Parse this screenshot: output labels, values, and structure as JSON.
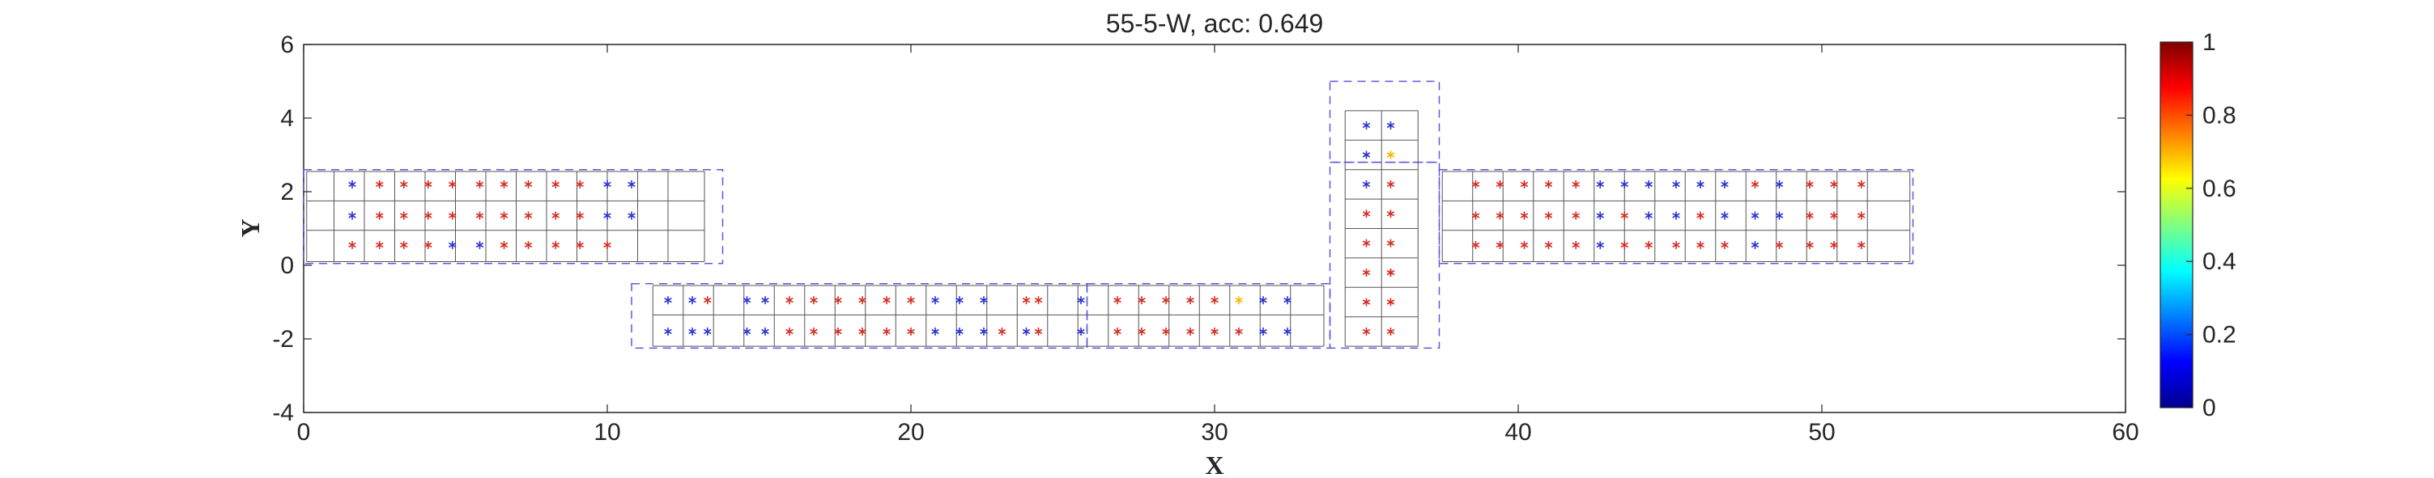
{
  "chart_data": {
    "type": "scatter",
    "title": "55-5-W, acc: 0.649",
    "xlabel": "X",
    "ylabel": "Y",
    "xlim": [
      0,
      60
    ],
    "ylim": [
      -4,
      6
    ],
    "xticks": [
      0,
      10,
      20,
      30,
      40,
      50,
      60
    ],
    "yticks": [
      -4,
      -2,
      0,
      2,
      4,
      6
    ],
    "grid": false,
    "colorbar": {
      "colormap": "jet",
      "range": [
        0,
        1
      ],
      "ticks": [
        0,
        0.2,
        0.4,
        0.6,
        0.8,
        1
      ],
      "tick_labels": [
        "0",
        "0.2",
        "0.4",
        "0.6",
        "0.8",
        "1"
      ]
    },
    "colors": {
      "high": "#d62b1f",
      "low": "#2b2fd6",
      "mid": "#f5b800",
      "grid_lines": "#555555",
      "region_dash": "#5a5adc"
    },
    "regions": [
      {
        "x0": 0,
        "x1": 13.8,
        "y0": 0.05,
        "y1": 2.6
      },
      {
        "x0": 10.8,
        "x1": 25.8,
        "y0": -2.25,
        "y1": -0.5
      },
      {
        "x0": 25.8,
        "x1": 33.8,
        "y0": -2.25,
        "y1": -0.5
      },
      {
        "x0": 33.8,
        "x1": 37.4,
        "y0": 2.8,
        "y1": 5.0
      },
      {
        "x0": 33.8,
        "x1": 37.4,
        "y0": -2.25,
        "y1": 2.8
      },
      {
        "x0": 37.4,
        "x1": 53.0,
        "y0": 0.05,
        "y1": 2.6
      }
    ],
    "cells": [
      {
        "x0": 0.1,
        "x1": 13.2,
        "ys": [
          0.1,
          0.95,
          1.75,
          2.55
        ],
        "xs": [
          0.1,
          1.0,
          2.0,
          3.0,
          4.0,
          5.0,
          6.0,
          7.0,
          8.0,
          9.0,
          10.0,
          11.0,
          12.0,
          13.2
        ]
      },
      {
        "x0": 11.5,
        "x1": 33.6,
        "ys": [
          -2.2,
          -1.35,
          -0.55
        ],
        "xs": [
          11.5,
          12.5,
          13.5,
          14.5,
          15.5,
          16.5,
          17.5,
          18.5,
          19.5,
          20.5,
          21.5,
          22.5,
          23.5,
          24.5,
          25.5,
          26.5,
          27.5,
          28.5,
          29.5,
          30.5,
          31.5,
          32.5,
          33.6
        ]
      },
      {
        "x0": 34.3,
        "x1": 36.7,
        "ys": [
          -2.2,
          -1.4,
          -0.6,
          0.2,
          1.0,
          1.8,
          2.6,
          3.4,
          4.2
        ],
        "xs": [
          34.3,
          35.5,
          36.7
        ]
      },
      {
        "x0": 37.5,
        "x1": 52.9,
        "ys": [
          0.1,
          0.95,
          1.75,
          2.55
        ],
        "xs": [
          37.5,
          38.5,
          39.5,
          40.5,
          41.5,
          42.5,
          43.5,
          44.5,
          45.5,
          46.5,
          47.5,
          48.5,
          49.5,
          50.5,
          51.5,
          52.9
        ]
      }
    ],
    "series": [
      {
        "value": 1,
        "points": [
          [
            2.5,
            2.2
          ],
          [
            3.3,
            2.2
          ],
          [
            4.1,
            2.2
          ],
          [
            4.9,
            2.2
          ],
          [
            5.8,
            2.2
          ],
          [
            6.6,
            2.2
          ],
          [
            7.4,
            2.2
          ],
          [
            8.3,
            2.2
          ],
          [
            9.1,
            2.2
          ],
          [
            2.5,
            1.35
          ],
          [
            3.3,
            1.35
          ],
          [
            4.1,
            1.35
          ],
          [
            4.9,
            1.35
          ],
          [
            5.8,
            1.35
          ],
          [
            6.6,
            1.35
          ],
          [
            7.4,
            1.35
          ],
          [
            8.3,
            1.35
          ],
          [
            9.1,
            1.35
          ],
          [
            1.6,
            0.55
          ],
          [
            2.5,
            0.55
          ],
          [
            3.3,
            0.55
          ],
          [
            4.1,
            0.55
          ],
          [
            6.6,
            0.55
          ],
          [
            7.4,
            0.55
          ],
          [
            8.3,
            0.55
          ],
          [
            9.1,
            0.55
          ],
          [
            10.0,
            0.55
          ],
          [
            13.3,
            -0.95
          ],
          [
            16.0,
            -0.95
          ],
          [
            16.8,
            -0.95
          ],
          [
            17.6,
            -0.95
          ],
          [
            18.4,
            -0.95
          ],
          [
            19.2,
            -0.95
          ],
          [
            20.0,
            -0.95
          ],
          [
            23.8,
            -0.95
          ],
          [
            24.2,
            -0.95
          ],
          [
            16.0,
            -1.8
          ],
          [
            16.8,
            -1.8
          ],
          [
            17.6,
            -1.8
          ],
          [
            18.4,
            -1.8
          ],
          [
            19.2,
            -1.8
          ],
          [
            20.0,
            -1.8
          ],
          [
            23.0,
            -1.8
          ],
          [
            24.2,
            -1.8
          ],
          [
            26.8,
            -0.95
          ],
          [
            27.6,
            -0.95
          ],
          [
            28.4,
            -0.95
          ],
          [
            29.2,
            -0.95
          ],
          [
            30.0,
            -0.95
          ],
          [
            26.8,
            -1.8
          ],
          [
            27.6,
            -1.8
          ],
          [
            28.4,
            -1.8
          ],
          [
            29.2,
            -1.8
          ],
          [
            30.0,
            -1.8
          ],
          [
            30.8,
            -1.8
          ],
          [
            35.8,
            2.2
          ],
          [
            35.0,
            1.4
          ],
          [
            35.8,
            1.4
          ],
          [
            35.0,
            0.6
          ],
          [
            35.8,
            0.6
          ],
          [
            35.0,
            -0.2
          ],
          [
            35.8,
            -0.2
          ],
          [
            35.0,
            -1.0
          ],
          [
            35.8,
            -1.0
          ],
          [
            35.0,
            -1.8
          ],
          [
            35.8,
            -1.8
          ],
          [
            35.8,
            -0.2
          ],
          [
            38.6,
            2.2
          ],
          [
            39.4,
            2.2
          ],
          [
            40.2,
            2.2
          ],
          [
            41.0,
            2.2
          ],
          [
            41.9,
            2.2
          ],
          [
            47.8,
            2.2
          ],
          [
            49.6,
            2.2
          ],
          [
            50.4,
            2.2
          ],
          [
            51.3,
            2.2
          ],
          [
            38.6,
            1.35
          ],
          [
            39.4,
            1.35
          ],
          [
            40.2,
            1.35
          ],
          [
            41.0,
            1.35
          ],
          [
            41.9,
            1.35
          ],
          [
            43.5,
            1.35
          ],
          [
            46.0,
            1.35
          ],
          [
            49.6,
            1.35
          ],
          [
            50.4,
            1.35
          ],
          [
            51.3,
            1.35
          ],
          [
            38.6,
            0.55
          ],
          [
            39.4,
            0.55
          ],
          [
            40.2,
            0.55
          ],
          [
            41.0,
            0.55
          ],
          [
            41.9,
            0.55
          ],
          [
            43.5,
            0.55
          ],
          [
            44.3,
            0.55
          ],
          [
            45.2,
            0.55
          ],
          [
            46.0,
            0.55
          ],
          [
            46.8,
            0.55
          ],
          [
            48.6,
            0.55
          ],
          [
            49.6,
            0.55
          ],
          [
            50.4,
            0.55
          ],
          [
            51.3,
            0.55
          ]
        ]
      },
      {
        "value": 0,
        "points": [
          [
            1.6,
            2.2
          ],
          [
            1.6,
            1.35
          ],
          [
            4.9,
            0.55
          ],
          [
            5.8,
            0.55
          ],
          [
            10.0,
            2.2
          ],
          [
            10.8,
            2.2
          ],
          [
            10.0,
            1.35
          ],
          [
            10.8,
            1.35
          ],
          [
            12.0,
            -0.95
          ],
          [
            12.8,
            -0.95
          ],
          [
            14.6,
            -0.95
          ],
          [
            15.2,
            -0.95
          ],
          [
            20.8,
            -0.95
          ],
          [
            21.6,
            -0.95
          ],
          [
            22.4,
            -0.95
          ],
          [
            25.6,
            -0.95
          ],
          [
            12.0,
            -1.8
          ],
          [
            12.8,
            -1.8
          ],
          [
            13.3,
            -1.8
          ],
          [
            14.6,
            -1.8
          ],
          [
            15.2,
            -1.8
          ],
          [
            20.8,
            -1.8
          ],
          [
            21.6,
            -1.8
          ],
          [
            22.4,
            -1.8
          ],
          [
            23.8,
            -1.8
          ],
          [
            25.6,
            -1.8
          ],
          [
            31.6,
            -0.95
          ],
          [
            32.4,
            -0.95
          ],
          [
            31.6,
            -1.8
          ],
          [
            32.4,
            -1.8
          ],
          [
            35.0,
            3.8
          ],
          [
            35.8,
            3.8
          ],
          [
            35.0,
            3.0
          ],
          [
            35.0,
            2.2
          ],
          [
            42.7,
            2.2
          ],
          [
            43.5,
            2.2
          ],
          [
            44.3,
            2.2
          ],
          [
            45.2,
            2.2
          ],
          [
            46.0,
            2.2
          ],
          [
            46.8,
            2.2
          ],
          [
            48.6,
            2.2
          ],
          [
            42.7,
            1.35
          ],
          [
            44.3,
            1.35
          ],
          [
            45.2,
            1.35
          ],
          [
            46.8,
            1.35
          ],
          [
            47.8,
            1.35
          ],
          [
            48.6,
            1.35
          ],
          [
            42.7,
            0.55
          ],
          [
            47.8,
            0.55
          ]
        ]
      },
      {
        "value": 0.65,
        "points": [
          [
            30.8,
            -0.95
          ],
          [
            35.8,
            3.0
          ]
        ]
      }
    ]
  }
}
